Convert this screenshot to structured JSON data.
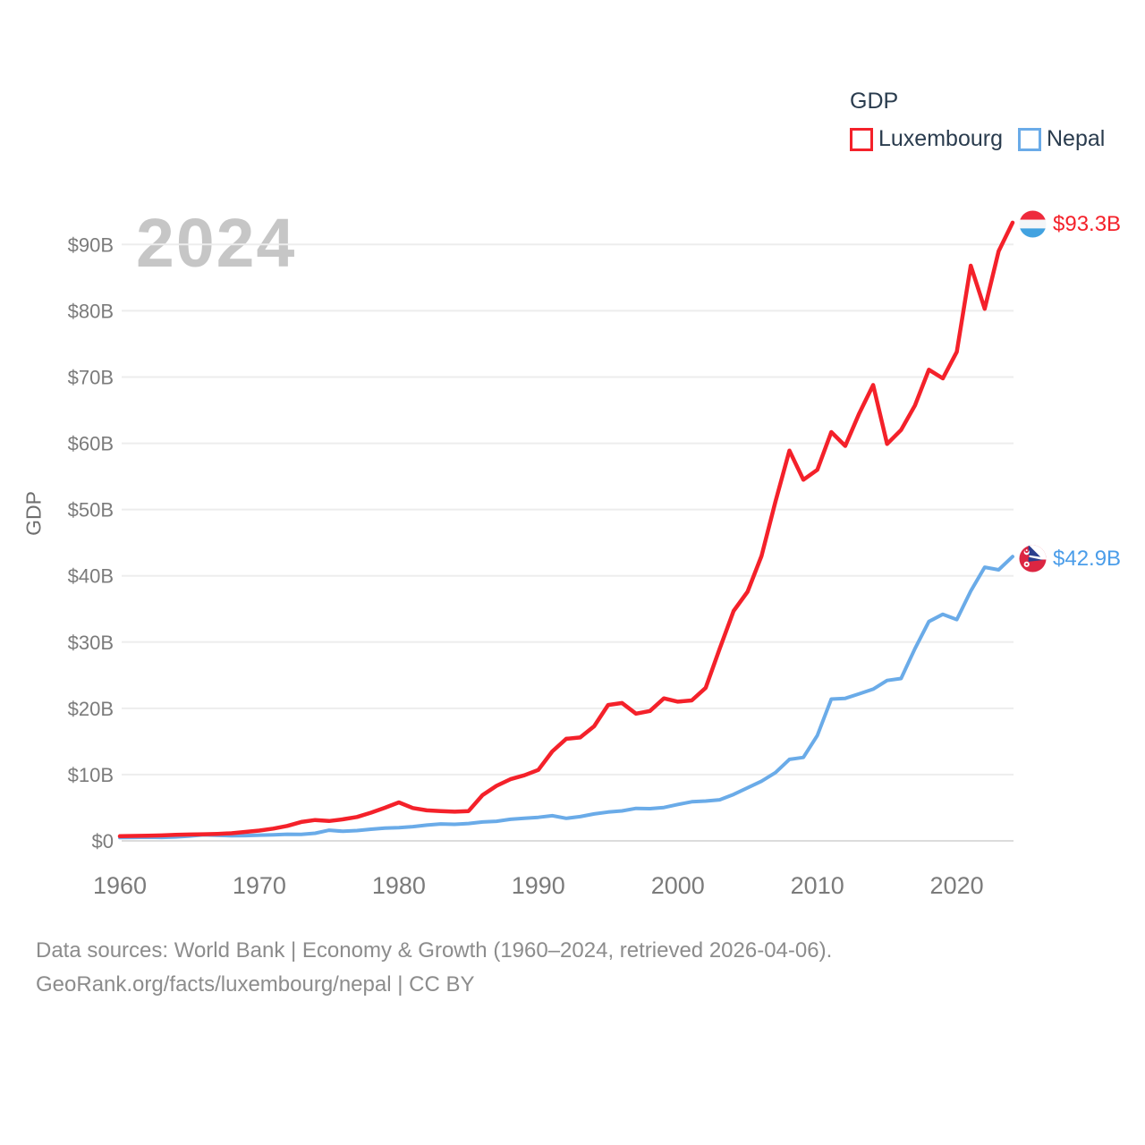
{
  "page": {
    "background": "#ffffff"
  },
  "legend": {
    "title": "GDP",
    "items": [
      {
        "label": "Luxembourg",
        "color": "#f4212a"
      },
      {
        "label": "Nepal",
        "color": "#6aabe8"
      }
    ]
  },
  "watermark": "2024",
  "chart_data": {
    "type": "line",
    "title": "GDP",
    "ylabel": "GDP",
    "xlabel": "",
    "ylim": [
      0,
      95
    ],
    "xlim": [
      1960,
      2024
    ],
    "grid": "horizontal",
    "legend_position": "top-right",
    "y_ticks": [
      0,
      10,
      20,
      30,
      40,
      50,
      60,
      70,
      80,
      90
    ],
    "y_tick_labels": [
      "$0",
      "$10B",
      "$20B",
      "$30B",
      "$40B",
      "$50B",
      "$60B",
      "$70B",
      "$80B",
      "$90B"
    ],
    "x_ticks": [
      1960,
      1970,
      1980,
      1990,
      2000,
      2010,
      2020
    ],
    "x": [
      1960,
      1961,
      1962,
      1963,
      1964,
      1965,
      1966,
      1967,
      1968,
      1969,
      1970,
      1971,
      1972,
      1973,
      1974,
      1975,
      1976,
      1977,
      1978,
      1979,
      1980,
      1981,
      1982,
      1983,
      1984,
      1985,
      1986,
      1987,
      1988,
      1989,
      1990,
      1991,
      1992,
      1993,
      1994,
      1995,
      1996,
      1997,
      1998,
      1999,
      2000,
      2001,
      2002,
      2003,
      2004,
      2005,
      2006,
      2007,
      2008,
      2009,
      2010,
      2011,
      2012,
      2013,
      2014,
      2015,
      2016,
      2017,
      2018,
      2019,
      2020,
      2021,
      2022,
      2023,
      2024
    ],
    "series": [
      {
        "name": "Luxembourg",
        "color": "#f4212a",
        "end_label": "$93.3B",
        "end_label_color": "#f4212a",
        "unit": "billion USD",
        "values": [
          0.7,
          0.74,
          0.77,
          0.83,
          0.91,
          0.96,
          1.0,
          1.05,
          1.15,
          1.35,
          1.55,
          1.85,
          2.25,
          2.85,
          3.15,
          3.0,
          3.25,
          3.6,
          4.25,
          5.0,
          5.8,
          4.95,
          4.6,
          4.5,
          4.4,
          4.5,
          6.9,
          8.3,
          9.3,
          9.9,
          10.7,
          13.5,
          15.4,
          15.6,
          17.3,
          20.5,
          20.8,
          19.2,
          19.6,
          21.5,
          21.0,
          21.2,
          23.1,
          29.0,
          34.7,
          37.6,
          43.0,
          51.2,
          58.9,
          54.5,
          56.0,
          61.7,
          59.6,
          64.5,
          68.8,
          59.9,
          62.0,
          65.7,
          71.1,
          69.8,
          73.8,
          86.8,
          80.3,
          89.0,
          93.3
        ]
      },
      {
        "name": "Nepal",
        "color": "#6aabe8",
        "end_label": "$42.9B",
        "end_label_color": "#4b9de9",
        "unit": "billion USD",
        "values": [
          0.5,
          0.53,
          0.55,
          0.52,
          0.6,
          0.73,
          0.9,
          0.84,
          0.77,
          0.8,
          0.87,
          0.92,
          1.0,
          0.98,
          1.15,
          1.6,
          1.45,
          1.55,
          1.75,
          1.92,
          1.98,
          2.15,
          2.38,
          2.55,
          2.5,
          2.62,
          2.85,
          2.96,
          3.25,
          3.42,
          3.55,
          3.8,
          3.4,
          3.66,
          4.07,
          4.35,
          4.52,
          4.9,
          4.86,
          5.03,
          5.49,
          5.9,
          6.01,
          6.2,
          7.0,
          8.0,
          9.0,
          10.3,
          12.3,
          12.6,
          15.9,
          21.4,
          21.5,
          22.2,
          22.9,
          24.2,
          24.5,
          29.0,
          33.1,
          34.2,
          33.4,
          37.7,
          41.3,
          40.9,
          42.9
        ]
      }
    ]
  },
  "footer": {
    "line1": "Data sources: World Bank | Economy & Growth (1960–2024, retrieved 2026-04-06).",
    "line2": "GeoRank.org/facts/luxembourg/nepal | CC BY"
  }
}
